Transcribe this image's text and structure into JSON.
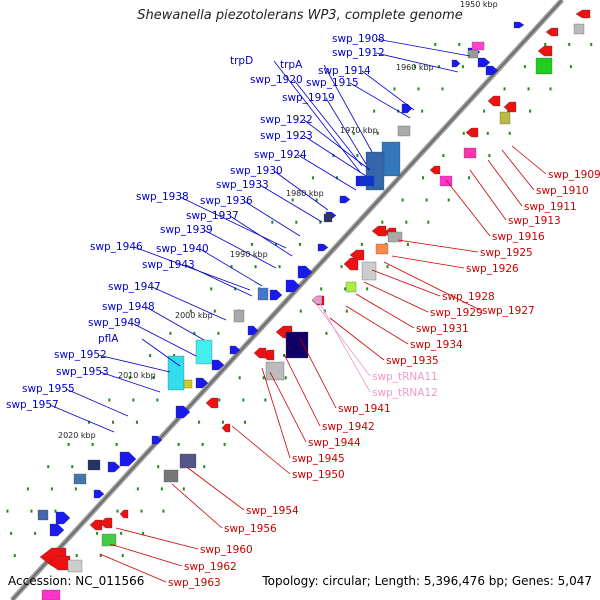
{
  "title": "Shewanella piezotolerans WP3, complete genome",
  "footer": {
    "accession": "Accession: NC_011566",
    "topology": "Topology: circular; Length: 5,396,476 bp; Genes: 5,047"
  },
  "colors": {
    "forward": "#0000cc",
    "reverse": "#cc0000",
    "rna": "#ee99cc",
    "backbone": "#808080"
  },
  "ticks": [
    {
      "label": "1950 kbp"
    },
    {
      "label": "1960 kbp"
    },
    {
      "label": "1970 kbp"
    },
    {
      "label": "1980 kbp"
    },
    {
      "label": "1990 kbp"
    },
    {
      "label": "2000 kbp"
    },
    {
      "label": "2010 kbp"
    },
    {
      "label": "2020 kbp"
    }
  ],
  "forward_genes": [
    {
      "name": "swp_1908"
    },
    {
      "name": "swp_1912"
    },
    {
      "name": "trpD"
    },
    {
      "name": "trpA"
    },
    {
      "name": "swp_1914"
    },
    {
      "name": "swp_1920"
    },
    {
      "name": "swp_1915"
    },
    {
      "name": "swp_1919"
    },
    {
      "name": "swp_1922"
    },
    {
      "name": "swp_1923"
    },
    {
      "name": "swp_1924"
    },
    {
      "name": "swp_1930"
    },
    {
      "name": "swp_1933"
    },
    {
      "name": "swp_1938"
    },
    {
      "name": "swp_1936"
    },
    {
      "name": "swp_1937"
    },
    {
      "name": "swp_1939"
    },
    {
      "name": "swp_1946"
    },
    {
      "name": "swp_1940"
    },
    {
      "name": "swp_1943"
    },
    {
      "name": "swp_1947"
    },
    {
      "name": "swp_1948"
    },
    {
      "name": "swp_1949"
    },
    {
      "name": "pflA"
    },
    {
      "name": "swp_1952"
    },
    {
      "name": "swp_1953"
    },
    {
      "name": "swp_1955"
    },
    {
      "name": "swp_1957"
    }
  ],
  "reverse_genes": [
    {
      "name": "swp_1909"
    },
    {
      "name": "swp_1910"
    },
    {
      "name": "swp_1911"
    },
    {
      "name": "swp_1913"
    },
    {
      "name": "swp_1916"
    },
    {
      "name": "swp_1925"
    },
    {
      "name": "swp_1926"
    },
    {
      "name": "swp_1928"
    },
    {
      "name": "swp_1927"
    },
    {
      "name": "swp_1929"
    },
    {
      "name": "swp_1931"
    },
    {
      "name": "swp_1934"
    },
    {
      "name": "swp_1935"
    },
    {
      "name": "swp_tRNA11"
    },
    {
      "name": "swp_tRNA12"
    },
    {
      "name": "swp_1941"
    },
    {
      "name": "swp_1942"
    },
    {
      "name": "swp_1944"
    },
    {
      "name": "swp_1945"
    },
    {
      "name": "swp_1950"
    },
    {
      "name": "swp_1954"
    },
    {
      "name": "swp_1956"
    },
    {
      "name": "swp_1960"
    },
    {
      "name": "swp_1962"
    },
    {
      "name": "swp_1963"
    }
  ]
}
